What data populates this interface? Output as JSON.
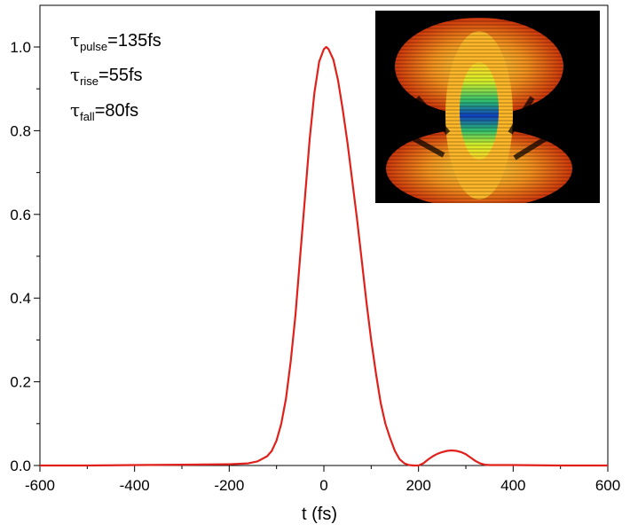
{
  "chart_data": {
    "type": "line",
    "title": "",
    "xlabel": "t (fs)",
    "ylabel": "",
    "xlim": [
      -600,
      600
    ],
    "ylim": [
      0,
      1.1
    ],
    "xticks": [
      -600,
      -400,
      -200,
      0,
      200,
      400,
      600
    ],
    "yticks": [
      0.0,
      0.2,
      0.4,
      0.6,
      0.8,
      1.0
    ],
    "xtick_labels": [
      "-600",
      "-400",
      "-200",
      "0",
      "200",
      "400",
      "600"
    ],
    "ytick_labels": [
      "0.0",
      "0.2",
      "0.4",
      "0.6",
      "0.8",
      "1.0"
    ],
    "grid": false,
    "series": [
      {
        "color": "#e0201b",
        "x": [
          -600,
          -500,
          -400,
          -300,
          -200,
          -160,
          -140,
          -120,
          -110,
          -100,
          -90,
          -80,
          -70,
          -60,
          -50,
          -40,
          -30,
          -20,
          -10,
          0,
          5,
          10,
          20,
          30,
          40,
          50,
          60,
          70,
          80,
          90,
          100,
          110,
          120,
          130,
          140,
          150,
          160,
          170,
          180,
          190,
          200,
          210,
          220,
          230,
          240,
          250,
          260,
          270,
          280,
          290,
          300,
          310,
          320,
          330,
          340,
          350,
          400,
          500,
          600
        ],
        "y": [
          0.0,
          0.0,
          0.001,
          0.002,
          0.003,
          0.005,
          0.01,
          0.022,
          0.035,
          0.06,
          0.1,
          0.16,
          0.25,
          0.36,
          0.5,
          0.64,
          0.78,
          0.89,
          0.965,
          0.995,
          1.0,
          0.995,
          0.97,
          0.92,
          0.85,
          0.77,
          0.68,
          0.59,
          0.49,
          0.39,
          0.3,
          0.22,
          0.15,
          0.1,
          0.065,
          0.035,
          0.015,
          0.005,
          0.001,
          0.0,
          0.0,
          0.005,
          0.014,
          0.022,
          0.028,
          0.032,
          0.035,
          0.036,
          0.035,
          0.032,
          0.027,
          0.019,
          0.011,
          0.005,
          0.002,
          0.001,
          0.001,
          0.0,
          0.0
        ]
      }
    ],
    "annotations": [
      {
        "symbol": "τ",
        "subscript": "pulse",
        "text": "=135fs"
      },
      {
        "symbol": "τ",
        "subscript": "rise",
        "text": "=55fs"
      },
      {
        "symbol": "τ",
        "subscript": "fall",
        "text": "=80fs"
      }
    ],
    "inset": {
      "kind": "spectrogram-image",
      "colors": [
        "#000000",
        "#c0280c",
        "#ff7a1a",
        "#ffd42a",
        "#d8f02a",
        "#2fc070",
        "#1040c0"
      ]
    }
  }
}
